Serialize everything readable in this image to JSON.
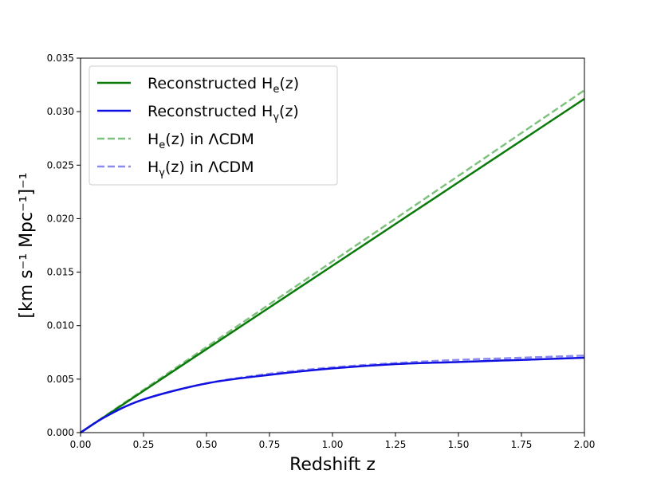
{
  "chart_data": {
    "type": "line",
    "xlabel": "Redshift z",
    "ylabel": "[km s⁻¹ Mpc⁻¹]⁻¹",
    "xlim": [
      0.0,
      2.0
    ],
    "ylim": [
      0.0,
      0.035
    ],
    "x_ticks": [
      "0.00",
      "0.25",
      "0.50",
      "0.75",
      "1.00",
      "1.25",
      "1.50",
      "1.75",
      "2.00"
    ],
    "y_ticks": [
      "0.000",
      "0.005",
      "0.010",
      "0.015",
      "0.020",
      "0.025",
      "0.030",
      "0.035"
    ],
    "grid": false,
    "legend_position": "top-left",
    "series": [
      {
        "name": "Reconstructed H_e(z)",
        "color": "#0a7a0a",
        "style": "solid",
        "x": [
          0.0,
          0.25,
          0.5,
          0.75,
          1.0,
          1.25,
          1.5,
          1.75,
          2.0
        ],
        "y": [
          0.0,
          0.0039,
          0.0078,
          0.0117,
          0.0156,
          0.0195,
          0.0234,
          0.0273,
          0.0312
        ]
      },
      {
        "name": "Reconstructed H_γ(z)",
        "color": "#1010e0",
        "style": "solid",
        "x": [
          0.0,
          0.1,
          0.25,
          0.5,
          0.75,
          1.0,
          1.25,
          1.5,
          1.75,
          2.0
        ],
        "y": [
          0.0,
          0.0015,
          0.0031,
          0.0046,
          0.0054,
          0.006,
          0.0064,
          0.0066,
          0.0068,
          0.007
        ]
      },
      {
        "name": "H_e(z) in ΛCDM",
        "color": "#7fc27f",
        "style": "dashed",
        "x": [
          0.0,
          0.25,
          0.5,
          0.75,
          1.0,
          1.25,
          1.5,
          1.75,
          2.0
        ],
        "y": [
          0.0,
          0.004,
          0.008,
          0.012,
          0.016,
          0.02,
          0.024,
          0.028,
          0.032
        ]
      },
      {
        "name": "H_γ(z) in ΛCDM",
        "color": "#8a8af0",
        "style": "dashed",
        "x": [
          0.0,
          0.1,
          0.25,
          0.5,
          0.75,
          1.0,
          1.25,
          1.5,
          1.75,
          2.0
        ],
        "y": [
          0.0,
          0.0015,
          0.0031,
          0.0046,
          0.0055,
          0.0061,
          0.0065,
          0.0068,
          0.007,
          0.0072
        ]
      }
    ],
    "legend": {
      "entries": [
        {
          "main": "Reconstructed H",
          "sub": "e",
          "tail": "(z)",
          "prefix": ""
        },
        {
          "main": "Reconstructed H",
          "sub": "γ",
          "tail": "(z)",
          "prefix": ""
        },
        {
          "main": "H",
          "sub": "e",
          "tail": "(z) in ΛCDM",
          "prefix": " "
        },
        {
          "main": "H",
          "sub": "γ",
          "tail": "(z) in ΛCDM",
          "prefix": " "
        }
      ]
    }
  }
}
